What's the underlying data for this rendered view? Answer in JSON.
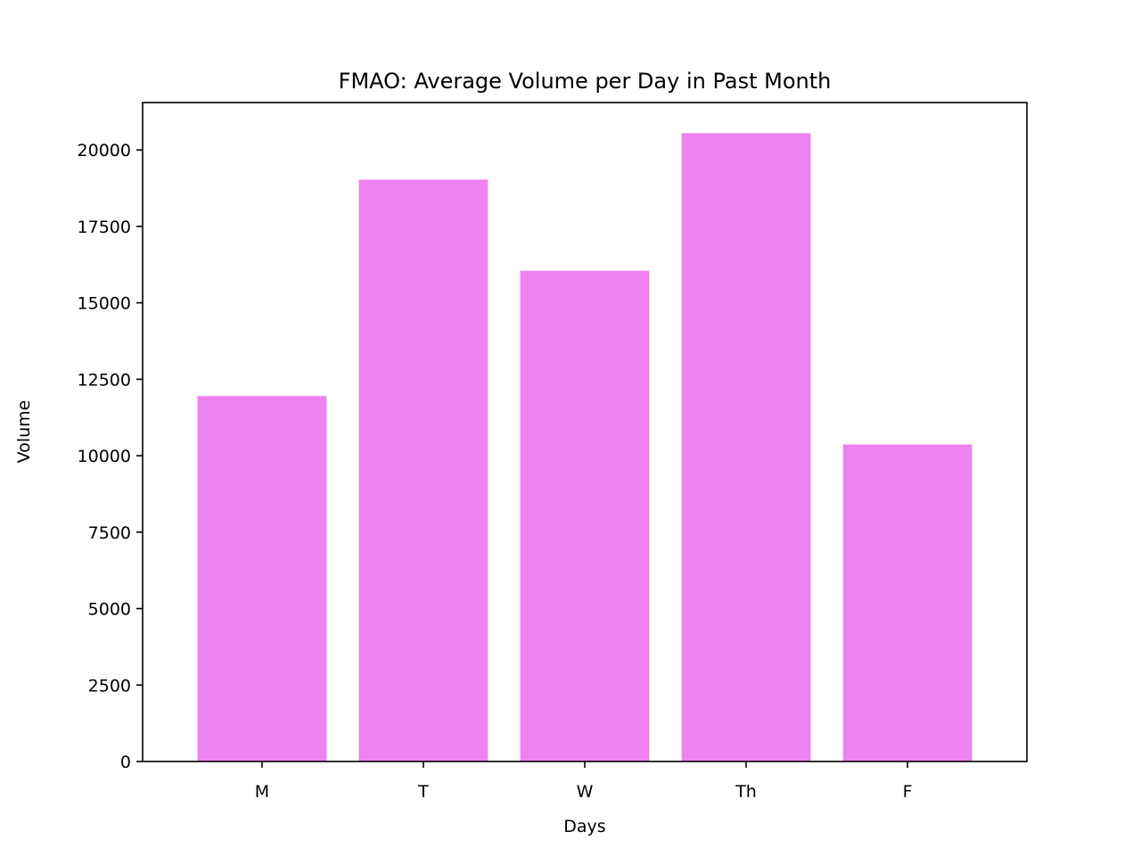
{
  "chart_data": {
    "type": "bar",
    "title": "FMAO: Average Volume per Day in Past Month",
    "xlabel": "Days",
    "ylabel": "Volume",
    "categories": [
      "M",
      "T",
      "W",
      "Th",
      "F"
    ],
    "values": [
      11950,
      19030,
      16050,
      20550,
      10370
    ],
    "ylim": [
      0,
      21550
    ],
    "yticks": [
      0,
      2500,
      5000,
      7500,
      10000,
      12500,
      15000,
      17500,
      20000
    ],
    "bar_color": "#ee82ee",
    "grid": false,
    "legend": "none"
  }
}
